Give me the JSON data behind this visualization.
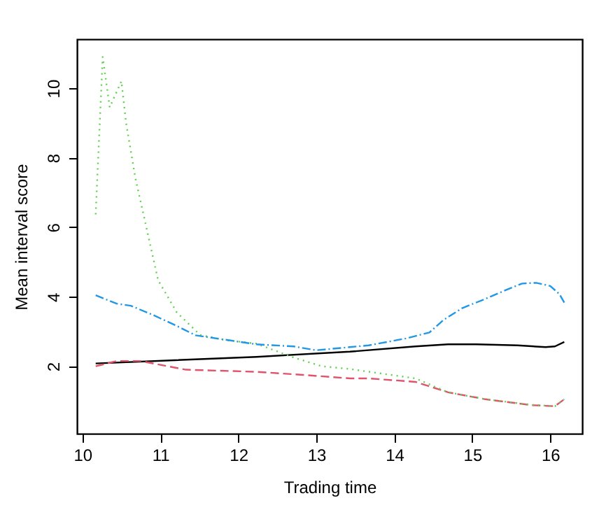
{
  "chart_data": {
    "type": "line",
    "xlabel": "Trading time",
    "ylabel": "Mean interval score",
    "xlim": [
      9.93,
      16.41
    ],
    "ylim": [
      0.06,
      11.41
    ],
    "xticks": [
      10,
      11,
      12,
      13,
      14,
      15,
      16
    ],
    "yticks": [
      2,
      4,
      6,
      8,
      10
    ],
    "grid": false,
    "marker": "none",
    "series": [
      {
        "color": "#000000",
        "line_style": "solid",
        "x": [
          10.17,
          12.23,
          13.43,
          14.27,
          14.69,
          15.05,
          15.58,
          15.94,
          16.06,
          16.18
        ],
        "values": [
          2.08,
          2.27,
          2.42,
          2.57,
          2.63,
          2.63,
          2.6,
          2.55,
          2.57,
          2.7
        ]
      },
      {
        "color": "#df536b",
        "line_style": "dashed",
        "x": [
          10.17,
          10.44,
          10.74,
          11.33,
          12.23,
          12.83,
          13.43,
          13.67,
          14.27,
          14.69,
          15.17,
          15.76,
          16.06,
          16.18
        ],
        "values": [
          2.0,
          2.15,
          2.15,
          1.9,
          1.84,
          1.75,
          1.65,
          1.65,
          1.55,
          1.25,
          1.05,
          0.88,
          0.85,
          1.05
        ]
      },
      {
        "color": "#61d04f",
        "line_style": "dotted",
        "x": [
          10.17,
          10.26,
          10.35,
          10.5,
          10.56,
          10.68,
          10.79,
          10.97,
          11.21,
          11.51,
          11.81,
          12.23,
          12.71,
          13.07,
          13.43,
          14.27,
          14.69,
          15.17,
          15.76,
          16.06,
          16.18
        ],
        "values": [
          6.37,
          10.9,
          9.45,
          10.2,
          9.0,
          7.4,
          6.3,
          4.48,
          3.55,
          2.9,
          2.76,
          2.65,
          2.25,
          2.0,
          1.92,
          1.65,
          1.25,
          1.05,
          0.89,
          0.85,
          1.05
        ]
      },
      {
        "color": "#2297e6",
        "line_style": "dashdot",
        "x": [
          10.17,
          10.44,
          10.62,
          10.91,
          11.21,
          11.45,
          11.81,
          12.23,
          12.71,
          13.0,
          13.43,
          13.67,
          14.15,
          14.45,
          14.63,
          14.87,
          15.17,
          15.47,
          15.64,
          15.82,
          16.0,
          16.12,
          16.18
        ],
        "values": [
          4.04,
          3.8,
          3.74,
          3.47,
          3.16,
          2.89,
          2.77,
          2.63,
          2.57,
          2.46,
          2.55,
          2.6,
          2.8,
          2.97,
          3.33,
          3.67,
          3.94,
          4.23,
          4.38,
          4.4,
          4.31,
          4.07,
          3.83
        ]
      }
    ]
  }
}
